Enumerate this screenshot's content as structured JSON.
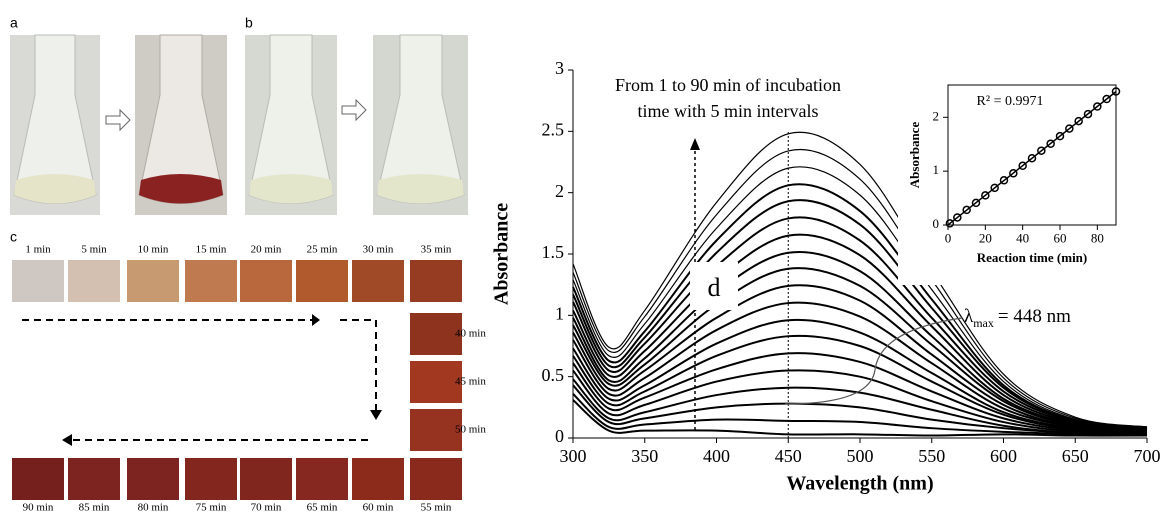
{
  "panels": {
    "a": "a",
    "b": "b",
    "c": "c"
  },
  "swatches": [
    {
      "label": "1 min",
      "color": "#cfc8c2"
    },
    {
      "label": "5 min",
      "color": "#d4c0b0"
    },
    {
      "label": "10 min",
      "color": "#c89a72"
    },
    {
      "label": "15 min",
      "color": "#c07a50"
    },
    {
      "label": "20 min",
      "color": "#b8683c"
    },
    {
      "label": "25 min",
      "color": "#b05a2e"
    },
    {
      "label": "30 min",
      "color": "#a04a28"
    },
    {
      "label": "35 min",
      "color": "#963c22"
    },
    {
      "label": "40 min",
      "color": "#8e341e"
    },
    {
      "label": "45 min",
      "color": "#a23820"
    },
    {
      "label": "50 min",
      "color": "#963220"
    },
    {
      "label": "55 min",
      "color": "#8a2a1c"
    },
    {
      "label": "60 min",
      "color": "#8c2a1c"
    },
    {
      "label": "65 min",
      "color": "#862820"
    },
    {
      "label": "70 min",
      "color": "#80261e"
    },
    {
      "label": "75 min",
      "color": "#82261e"
    },
    {
      "label": "80 min",
      "color": "#7e2420"
    },
    {
      "label": "85 min",
      "color": "#7e2420"
    },
    {
      "label": "90 min",
      "color": "#76201e"
    }
  ],
  "chart_data": [
    {
      "type": "line",
      "xlabel": "Wavelength (nm)",
      "ylabel": "Absorbance",
      "x": [
        300,
        325,
        350,
        400,
        450,
        500,
        550,
        600,
        650,
        700
      ],
      "xlim": [
        300,
        700
      ],
      "xticks": [
        300,
        350,
        400,
        450,
        500,
        550,
        600,
        650,
        700
      ],
      "ylim": [
        0,
        3
      ],
      "yticks": [
        0,
        0.5,
        1,
        1.5,
        2,
        2.5,
        3
      ],
      "color": "#000000",
      "series": [
        {
          "values": [
            0.31,
            0.06,
            0.06,
            0.06,
            0.03,
            0.03,
            0.02,
            0.03,
            0.02,
            0.02
          ]
        },
        {
          "values": [
            0.36,
            0.09,
            0.11,
            0.15,
            0.14,
            0.13,
            0.08,
            0.05,
            0.03,
            0.02
          ]
        },
        {
          "values": [
            0.43,
            0.13,
            0.16,
            0.25,
            0.28,
            0.25,
            0.15,
            0.08,
            0.04,
            0.03
          ]
        },
        {
          "values": [
            0.48,
            0.16,
            0.21,
            0.35,
            0.41,
            0.37,
            0.23,
            0.1,
            0.04,
            0.03
          ]
        },
        {
          "values": [
            0.55,
            0.2,
            0.27,
            0.46,
            0.55,
            0.5,
            0.3,
            0.13,
            0.05,
            0.04
          ]
        },
        {
          "values": [
            0.61,
            0.24,
            0.33,
            0.56,
            0.69,
            0.62,
            0.38,
            0.16,
            0.06,
            0.04
          ]
        },
        {
          "values": [
            0.67,
            0.28,
            0.38,
            0.67,
            0.83,
            0.75,
            0.46,
            0.19,
            0.07,
            0.04
          ]
        },
        {
          "values": [
            0.73,
            0.32,
            0.43,
            0.77,
            0.96,
            0.86,
            0.53,
            0.21,
            0.08,
            0.05
          ]
        },
        {
          "values": [
            0.8,
            0.36,
            0.49,
            0.88,
            1.1,
            0.99,
            0.61,
            0.24,
            0.09,
            0.05
          ]
        },
        {
          "values": [
            0.86,
            0.4,
            0.55,
            0.98,
            1.24,
            1.12,
            0.68,
            0.27,
            0.09,
            0.06
          ]
        },
        {
          "values": [
            0.92,
            0.44,
            0.6,
            1.09,
            1.38,
            1.24,
            0.76,
            0.3,
            0.1,
            0.06
          ]
        },
        {
          "values": [
            0.98,
            0.47,
            0.65,
            1.19,
            1.51,
            1.36,
            0.83,
            0.32,
            0.11,
            0.07
          ]
        },
        {
          "values": [
            1.04,
            0.51,
            0.71,
            1.29,
            1.65,
            1.49,
            0.91,
            0.35,
            0.12,
            0.07
          ]
        },
        {
          "values": [
            1.11,
            0.55,
            0.77,
            1.4,
            1.79,
            1.61,
            0.98,
            0.38,
            0.13,
            0.07
          ]
        },
        {
          "values": [
            1.17,
            0.59,
            0.82,
            1.51,
            1.93,
            1.74,
            1.06,
            0.41,
            0.14,
            0.08
          ]
        },
        {
          "values": [
            1.23,
            0.63,
            0.87,
            1.61,
            2.06,
            1.85,
            1.13,
            0.43,
            0.14,
            0.08
          ]
        },
        {
          "values": [
            1.29,
            0.67,
            0.93,
            1.71,
            2.2,
            1.98,
            1.21,
            0.46,
            0.15,
            0.09
          ]
        },
        {
          "values": [
            1.35,
            0.71,
            0.99,
            1.82,
            2.34,
            2.11,
            1.29,
            0.49,
            0.16,
            0.09
          ]
        },
        {
          "values": [
            1.42,
            0.74,
            1.04,
            1.92,
            2.48,
            2.23,
            1.36,
            0.52,
            0.17,
            0.09
          ]
        }
      ],
      "annotations": {
        "note": [
          "From 1 to 90 min of incubation",
          "time with 5 min  intervals"
        ],
        "panel": "d",
        "lambda": {
          "symbol": "λ",
          "subscript": "max",
          "text": "= 448 nm"
        }
      }
    },
    {
      "type": "scatter",
      "xlabel": "Reaction time (min)",
      "ylabel": "Absorbance",
      "annotation": "R² = 0.9971",
      "x": [
        1,
        5,
        10,
        15,
        20,
        25,
        30,
        35,
        40,
        45,
        50,
        55,
        60,
        65,
        70,
        75,
        80,
        85,
        90
      ],
      "values": [
        0.03,
        0.14,
        0.28,
        0.41,
        0.55,
        0.69,
        0.83,
        0.96,
        1.1,
        1.24,
        1.38,
        1.51,
        1.65,
        1.79,
        1.93,
        2.06,
        2.2,
        2.34,
        2.48
      ],
      "xlim": [
        0,
        90
      ],
      "xticks": [
        0,
        20,
        40,
        60,
        80
      ],
      "ylim": [
        0,
        2.6
      ],
      "yticks": [
        0,
        1,
        2
      ],
      "trendline": true,
      "color": "#000000"
    }
  ]
}
